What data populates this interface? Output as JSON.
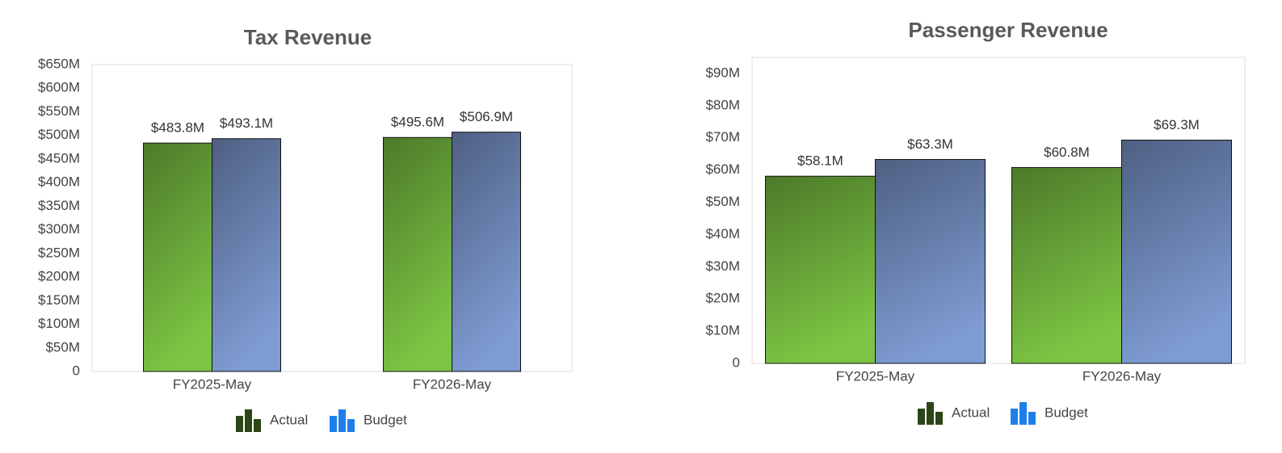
{
  "chart_data": [
    {
      "type": "bar",
      "title": "Tax Revenue",
      "categories": [
        "FY2025-May",
        "FY2026-May"
      ],
      "series": [
        {
          "name": "Actual",
          "color": "#7cc443",
          "values": [
            483.8,
            495.6
          ],
          "value_labels": [
            "$483.8M",
            "$495.6M"
          ]
        },
        {
          "name": "Budget",
          "color": "#7e9bd2",
          "values": [
            493.1,
            506.9
          ],
          "value_labels": [
            "$493.1M",
            "$506.9M"
          ]
        }
      ],
      "ylim": [
        0,
        650
      ],
      "yticks": [
        0,
        {
          "value": 50,
          "label": "$50M"
        },
        {
          "value": 100,
          "label": "$100M"
        },
        {
          "value": 150,
          "label": "$150M"
        },
        {
          "value": 200,
          "label": "$200M"
        },
        {
          "value": 250,
          "label": "$250M"
        },
        {
          "value": 300,
          "label": "$300M"
        },
        {
          "value": 350,
          "label": "$350M"
        },
        {
          "value": 400,
          "label": "$400M"
        },
        {
          "value": 450,
          "label": "$450M"
        },
        {
          "value": 500,
          "label": "$500M"
        },
        {
          "value": 550,
          "label": "$550M"
        },
        {
          "value": 600,
          "label": "$600M"
        },
        {
          "value": 650,
          "label": "$650M"
        }
      ],
      "grid": false,
      "legend": "bottom"
    },
    {
      "type": "bar",
      "title": "Passenger Revenue",
      "categories": [
        "FY2025-May",
        "FY2026-May"
      ],
      "series": [
        {
          "name": "Actual",
          "color": "#7cc443",
          "values": [
            58.1,
            60.8
          ],
          "value_labels": [
            "$58.1M",
            "$60.8M"
          ]
        },
        {
          "name": "Budget",
          "color": "#7e9bd2",
          "values": [
            63.3,
            69.3
          ],
          "value_labels": [
            "$63.3M",
            "$69.3M"
          ]
        }
      ],
      "ylim": [
        0,
        95
      ],
      "yticks": [
        0,
        {
          "value": 10,
          "label": "$10M"
        },
        {
          "value": 20,
          "label": "$20M"
        },
        {
          "value": 30,
          "label": "$30M"
        },
        {
          "value": 40,
          "label": "$40M"
        },
        {
          "value": 50,
          "label": "$50M"
        },
        {
          "value": 60,
          "label": "$60M"
        },
        {
          "value": 70,
          "label": "$70M"
        },
        {
          "value": 80,
          "label": "$80M"
        },
        {
          "value": 90,
          "label": "$90M"
        }
      ],
      "grid": false,
      "legend": "bottom"
    }
  ]
}
